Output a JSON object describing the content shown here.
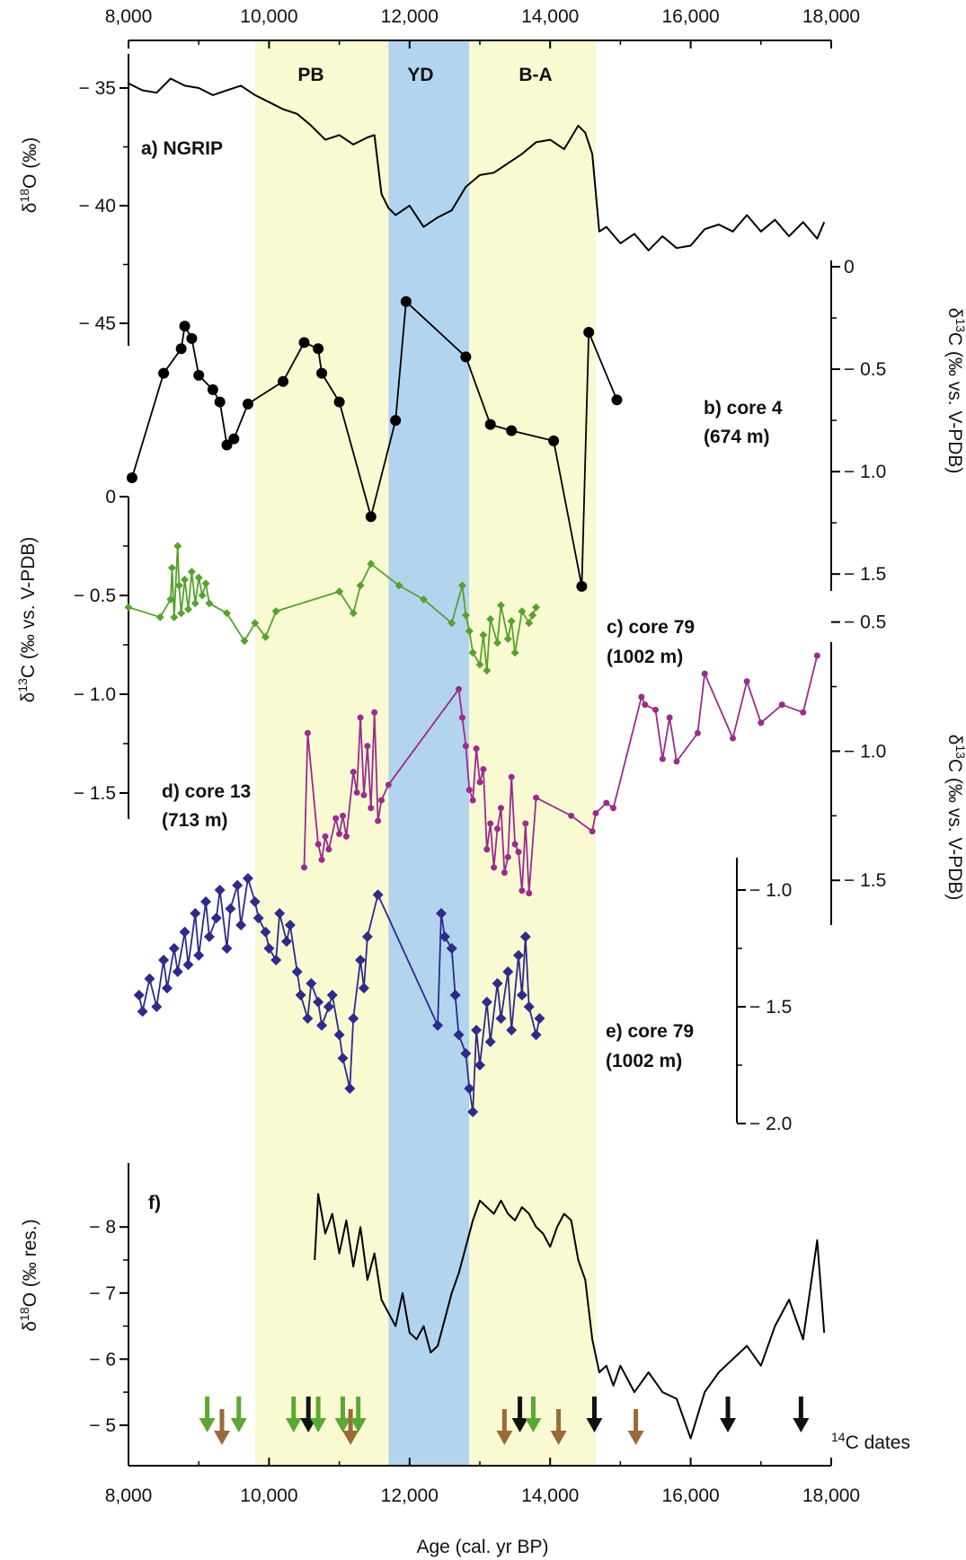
{
  "figure": {
    "x_axis": {
      "label": "Age (cal. yr BP)",
      "range": [
        8000,
        18000
      ],
      "ticks": [
        8000,
        10000,
        12000,
        14000,
        16000,
        18000
      ],
      "tick_labels": [
        "8,000",
        "10,000",
        "12,000",
        "14,000",
        "16,000",
        "18,000"
      ]
    },
    "bands": [
      {
        "label": "PB",
        "from": 9800,
        "to": 11700,
        "color": "#fafad2"
      },
      {
        "label": "YD",
        "from": 11700,
        "to": 12850,
        "color": "#b3d4ee"
      },
      {
        "label": "B-A",
        "from": 12850,
        "to": 14650,
        "color": "#fafad2"
      }
    ],
    "panel_labels": {
      "a": "a) NGRIP",
      "b1": "b) core 4",
      "b2": "(674 m)",
      "c1": "c) core 79",
      "c2": "(1002 m)",
      "d1": "d) core 13",
      "d2": "(713 m)",
      "e1": "e) core 79",
      "e2": "(1002 m)",
      "f": "f)"
    },
    "c14_label": "14C dates",
    "c14_label_sup": "14",
    "c14_label_rest": "C dates"
  },
  "chart_data": [
    {
      "type": "line",
      "id": "a",
      "panel": "a) NGRIP",
      "ylabel": "δ18O (‰)",
      "ylim": [
        -46,
        -33.5
      ],
      "ticks": [
        -35,
        -40,
        -45
      ],
      "tick_labels": [
        "− 35",
        "− 40",
        "− 45"
      ],
      "color": "#000000",
      "x": [
        8000,
        8200,
        8400,
        8600,
        8800,
        9000,
        9200,
        9400,
        9600,
        9800,
        10000,
        10200,
        10400,
        10600,
        10800,
        11000,
        11200,
        11400,
        11500,
        11600,
        11700,
        11800,
        12000,
        12200,
        12400,
        12600,
        12800,
        13000,
        13200,
        13400,
        13600,
        13800,
        14000,
        14200,
        14400,
        14500,
        14600,
        14700,
        14800,
        15000,
        15200,
        15400,
        15600,
        15800,
        16000,
        16200,
        16400,
        16600,
        16800,
        17000,
        17200,
        17400,
        17600,
        17800,
        17900
      ],
      "y": [
        -34.8,
        -35.1,
        -35.2,
        -34.6,
        -34.9,
        -35.0,
        -35.3,
        -35.1,
        -34.9,
        -35.3,
        -35.6,
        -35.9,
        -36.1,
        -36.6,
        -37.2,
        -37.0,
        -37.4,
        -37.1,
        -37.0,
        -39.5,
        -40.1,
        -40.4,
        -40.0,
        -40.9,
        -40.5,
        -40.2,
        -39.2,
        -38.7,
        -38.6,
        -38.2,
        -37.8,
        -37.3,
        -37.2,
        -37.6,
        -36.6,
        -36.9,
        -37.8,
        -41.1,
        -40.9,
        -41.6,
        -41.2,
        -41.9,
        -41.3,
        -41.8,
        -41.7,
        -41.0,
        -40.8,
        -41.1,
        -40.4,
        -41.1,
        -40.6,
        -41.3,
        -40.7,
        -41.4,
        -40.7
      ]
    },
    {
      "type": "line",
      "id": "b",
      "panel": "b) core 4 (674 m)",
      "ylabel": "δ13C (‰ vs. V-PDB)",
      "ylim": [
        -1.6,
        0
      ],
      "ticks": [
        0,
        -0.5,
        -1.0,
        -1.5
      ],
      "tick_labels": [
        "0",
        "− 0.5",
        "− 1.0",
        "− 1.5"
      ],
      "color": "#000000",
      "marker": "circle",
      "x": [
        8050,
        8500,
        8750,
        8800,
        8900,
        9000,
        9200,
        9300,
        9400,
        9500,
        9700,
        10200,
        10500,
        10700,
        10750,
        11000,
        11450,
        11800,
        11950,
        12800,
        13150,
        13450,
        14050,
        14450,
        14550,
        14950
      ],
      "y": [
        -1.03,
        -0.52,
        -0.4,
        -0.29,
        -0.35,
        -0.53,
        -0.6,
        -0.66,
        -0.87,
        -0.84,
        -0.67,
        -0.56,
        -0.37,
        -0.4,
        -0.52,
        -0.66,
        -1.22,
        -0.75,
        -0.17,
        -0.44,
        -0.77,
        -0.8,
        -0.85,
        -1.56,
        -0.32,
        -0.65
      ]
    },
    {
      "type": "line",
      "id": "c",
      "panel": "c) core 79 (1002 m)",
      "ylabel": "δ13C (‰ vs. V-PDB)",
      "ylim": [
        -1.6,
        0
      ],
      "ticks": [
        0,
        -0.5,
        -1.0,
        -1.5
      ],
      "tick_labels": [
        "0",
        "− 0.5",
        "− 1.0",
        "− 1.5"
      ],
      "color": "#56a22c",
      "marker": "diamond",
      "x": [
        8000,
        8450,
        8600,
        8620,
        8650,
        8700,
        8720,
        8750,
        8800,
        8850,
        8900,
        8950,
        9000,
        9050,
        9100,
        9150,
        9400,
        9650,
        9800,
        9950,
        10100,
        11000,
        11200,
        11300,
        11450,
        11850,
        12200,
        12600,
        12750,
        12800,
        12850,
        12900,
        13000,
        13050,
        13100,
        13150,
        13250,
        13300,
        13400,
        13450,
        13500,
        13600,
        13700,
        13750,
        13800
      ],
      "y": [
        -0.56,
        -0.61,
        -0.52,
        -0.36,
        -0.61,
        -0.25,
        -0.45,
        -0.59,
        -0.42,
        -0.57,
        -0.38,
        -0.54,
        -0.41,
        -0.5,
        -0.44,
        -0.54,
        -0.59,
        -0.73,
        -0.64,
        -0.71,
        -0.58,
        -0.48,
        -0.59,
        -0.45,
        -0.34,
        -0.45,
        -0.52,
        -0.64,
        -0.45,
        -0.6,
        -0.68,
        -0.79,
        -0.85,
        -0.7,
        -0.88,
        -0.62,
        -0.74,
        -0.55,
        -0.72,
        -0.63,
        -0.79,
        -0.58,
        -0.64,
        -0.6,
        -0.56
      ]
    },
    {
      "type": "line",
      "id": "d",
      "panel": "d) core 13 (713 m)",
      "ylabel": "δ13C (‰ vs. V-PDB)",
      "ylim": [
        -1.6,
        -0.55
      ],
      "ticks": [
        -0.5,
        -1.0,
        -1.5
      ],
      "tick_labels": [
        "− 0.5",
        "− 1.0",
        "− 1.5"
      ],
      "color": "#9b2b8e",
      "marker": "dot",
      "x": [
        10500,
        10550,
        10700,
        10750,
        10800,
        10850,
        10950,
        11000,
        11050,
        11100,
        11200,
        11250,
        11300,
        11350,
        11400,
        11450,
        11500,
        11550,
        11600,
        11700,
        12700,
        12750,
        12800,
        12850,
        12900,
        12950,
        13000,
        13050,
        13100,
        13150,
        13200,
        13250,
        13300,
        13350,
        13400,
        13450,
        13500,
        13550,
        13600,
        13650,
        13700,
        13800,
        14300,
        14600,
        14650,
        14800,
        14900,
        15300,
        15350,
        15500,
        15600,
        15700,
        15800,
        16100,
        16200,
        16600,
        16800,
        17000,
        17300,
        17600,
        17800
      ],
      "y": [
        -1.45,
        -0.93,
        -1.36,
        -1.42,
        -1.33,
        -1.38,
        -1.26,
        -1.32,
        -1.25,
        -1.33,
        -1.08,
        -1.16,
        -0.87,
        -1.17,
        -0.98,
        -1.22,
        -0.85,
        -1.27,
        -1.19,
        -1.13,
        -0.76,
        -0.87,
        -0.98,
        -1.15,
        -1.19,
        -0.99,
        -1.12,
        -1.07,
        -1.38,
        -1.28,
        -1.45,
        -1.3,
        -1.22,
        -1.47,
        -1.41,
        -1.1,
        -1.36,
        -1.39,
        -1.54,
        -1.28,
        -1.55,
        -1.18,
        -1.25,
        -1.31,
        -1.24,
        -1.2,
        -1.22,
        -0.79,
        -0.82,
        -0.84,
        -1.03,
        -0.87,
        -1.04,
        -0.93,
        -0.7,
        -0.95,
        -0.73,
        -0.89,
        -0.82,
        -0.85,
        -0.63
      ]
    },
    {
      "type": "line",
      "id": "e",
      "panel": "e) core 79 (1002 m)",
      "ylabel": "δ13C (‰ vs. V-PDB)",
      "ylim": [
        -2.0,
        -0.85
      ],
      "ticks": [
        -1.0,
        -1.5,
        -2.0
      ],
      "tick_labels": [
        "− 1.0",
        "− 1.5",
        "− 2.0"
      ],
      "color": "#2e2a8c",
      "marker": "diamond",
      "x": [
        8150,
        8200,
        8300,
        8400,
        8500,
        8550,
        8650,
        8700,
        8800,
        8850,
        8950,
        9000,
        9100,
        9150,
        9250,
        9300,
        9400,
        9450,
        9550,
        9600,
        9700,
        9800,
        9850,
        9950,
        10000,
        10100,
        10150,
        10250,
        10300,
        10400,
        10450,
        10550,
        10600,
        10700,
        10750,
        10850,
        10900,
        11000,
        11050,
        11150,
        11200,
        11300,
        11350,
        11400,
        11550,
        12400,
        12450,
        12500,
        12600,
        12650,
        12700,
        12800,
        12850,
        12900,
        12950,
        13000,
        13100,
        13150,
        13250,
        13300,
        13400,
        13450,
        13550,
        13600,
        13650,
        13700,
        13800,
        13850
      ],
      "y": [
        -1.45,
        -1.52,
        -1.38,
        -1.5,
        -1.3,
        -1.42,
        -1.25,
        -1.35,
        -1.18,
        -1.32,
        -1.1,
        -1.28,
        -1.05,
        -1.2,
        -1.12,
        -1.0,
        -1.25,
        -1.08,
        -0.98,
        -1.15,
        -0.95,
        -1.05,
        -1.12,
        -1.18,
        -1.25,
        -1.3,
        -1.1,
        -1.22,
        -1.15,
        -1.35,
        -1.45,
        -1.55,
        -1.4,
        -1.48,
        -1.58,
        -1.5,
        -1.45,
        -1.62,
        -1.72,
        -1.85,
        -1.55,
        -1.3,
        -1.42,
        -1.2,
        -1.02,
        -1.58,
        -1.1,
        -1.2,
        -1.25,
        -1.45,
        -1.62,
        -1.7,
        -1.85,
        -1.95,
        -1.6,
        -1.75,
        -1.48,
        -1.65,
        -1.4,
        -1.55,
        -1.35,
        -1.6,
        -1.28,
        -1.45,
        -1.2,
        -1.5,
        -1.62,
        -1.55
      ]
    },
    {
      "type": "line",
      "id": "f",
      "panel": "f)",
      "ylabel": "δ18O (‰ res.)",
      "ylim": [
        -4.55,
        -8.9
      ],
      "ticks": [
        -8,
        -7,
        -6,
        -5
      ],
      "tick_labels": [
        "− 8",
        "− 7",
        "− 6",
        "− 5"
      ],
      "color": "#000000",
      "x": [
        10650,
        10700,
        10800,
        10900,
        11000,
        11100,
        11200,
        11300,
        11400,
        11500,
        11600,
        11700,
        11800,
        11900,
        12000,
        12100,
        12200,
        12300,
        12400,
        12500,
        12600,
        12700,
        12800,
        12900,
        13000,
        13100,
        13200,
        13300,
        13400,
        13500,
        13600,
        13700,
        13800,
        13900,
        14000,
        14100,
        14200,
        14300,
        14400,
        14500,
        14600,
        14700,
        14800,
        14900,
        15000,
        15200,
        15400,
        15600,
        15800,
        16000,
        16200,
        16400,
        16600,
        16800,
        17000,
        17200,
        17400,
        17600,
        17800,
        17900
      ],
      "y": [
        -7.5,
        -8.5,
        -7.9,
        -8.2,
        -7.6,
        -8.1,
        -7.4,
        -8.0,
        -7.2,
        -7.6,
        -6.9,
        -6.7,
        -6.5,
        -7.0,
        -6.4,
        -6.3,
        -6.5,
        -6.1,
        -6.2,
        -6.6,
        -7.0,
        -7.3,
        -7.7,
        -8.1,
        -8.4,
        -8.3,
        -8.2,
        -8.4,
        -8.2,
        -8.1,
        -8.3,
        -8.2,
        -8.0,
        -7.9,
        -7.7,
        -8.0,
        -8.2,
        -8.1,
        -7.5,
        -7.2,
        -6.3,
        -5.8,
        -5.9,
        -5.6,
        -5.9,
        -5.5,
        -5.8,
        -5.5,
        -5.4,
        -4.8,
        -5.5,
        -5.8,
        -6.0,
        -6.2,
        -5.9,
        -6.5,
        -6.9,
        -6.3,
        -7.8,
        -6.4
      ]
    },
    {
      "type": "scatter",
      "id": "c14",
      "label": "14C dates",
      "marker": "arrow-down",
      "points": [
        {
          "x": 9120,
          "color": "green"
        },
        {
          "x": 9330,
          "color": "brown"
        },
        {
          "x": 9570,
          "color": "green"
        },
        {
          "x": 10350,
          "color": "green"
        },
        {
          "x": 10560,
          "color": "black"
        },
        {
          "x": 10700,
          "color": "green"
        },
        {
          "x": 11050,
          "color": "green"
        },
        {
          "x": 11160,
          "color": "brown"
        },
        {
          "x": 11270,
          "color": "green"
        },
        {
          "x": 13350,
          "color": "brown"
        },
        {
          "x": 13570,
          "color": "black"
        },
        {
          "x": 13760,
          "color": "green"
        },
        {
          "x": 14120,
          "color": "brown"
        },
        {
          "x": 14630,
          "color": "black"
        },
        {
          "x": 15220,
          "color": "brown"
        },
        {
          "x": 16530,
          "color": "black"
        },
        {
          "x": 17570,
          "color": "black"
        }
      ],
      "colors": {
        "green": "#5aa832",
        "brown": "#9a6a3a",
        "black": "#111111"
      }
    }
  ]
}
